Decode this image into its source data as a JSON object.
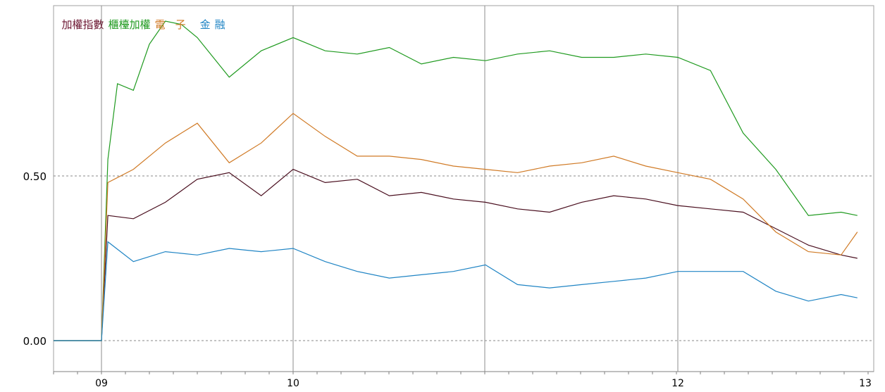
{
  "chart_data": {
    "type": "line",
    "title": "",
    "xlabel": "",
    "ylabel": "",
    "x_ticks": [
      "09",
      "10",
      "12",
      "13"
    ],
    "y_ticks": [
      "0.50",
      "0.00"
    ],
    "ylim": [
      -0.1,
      1.05
    ],
    "grid": {
      "horizontal_dashed": [
        0.0,
        0.5
      ],
      "vertical_solid": true
    },
    "legend_placement": "top-left",
    "series": [
      {
        "name": "加權指數",
        "color": "#4a0f1f",
        "x": [
          "08:45",
          "09:00",
          "09:02",
          "09:10",
          "09:20",
          "09:30",
          "09:40",
          "09:50",
          "10:00",
          "10:10",
          "10:20",
          "10:30",
          "10:40",
          "10:50",
          "11:00",
          "11:10",
          "11:20",
          "11:30",
          "11:40",
          "11:50",
          "12:00",
          "12:10",
          "12:20",
          "12:30",
          "12:40",
          "12:50",
          "12:55"
        ],
        "y": [
          0.0,
          0.0,
          0.38,
          0.37,
          0.42,
          0.49,
          0.51,
          0.44,
          0.52,
          0.48,
          0.49,
          0.44,
          0.45,
          0.43,
          0.42,
          0.4,
          0.39,
          0.42,
          0.44,
          0.43,
          0.41,
          0.4,
          0.39,
          0.34,
          0.29,
          0.26,
          0.25
        ]
      },
      {
        "name": "櫃檯加權",
        "color": "#1f9a1f",
        "x": [
          "08:45",
          "09:00",
          "09:02",
          "09:05",
          "09:10",
          "09:15",
          "09:20",
          "09:25",
          "09:30",
          "09:40",
          "09:50",
          "10:00",
          "10:10",
          "10:20",
          "10:30",
          "10:40",
          "10:50",
          "11:00",
          "11:10",
          "11:20",
          "11:30",
          "11:40",
          "11:50",
          "12:00",
          "12:10",
          "12:20",
          "12:30",
          "12:40",
          "12:50",
          "12:55"
        ],
        "y": [
          0.0,
          0.0,
          0.55,
          0.78,
          0.76,
          0.9,
          0.97,
          0.96,
          0.92,
          0.8,
          0.88,
          0.92,
          0.88,
          0.87,
          0.89,
          0.84,
          0.86,
          0.85,
          0.87,
          0.88,
          0.86,
          0.86,
          0.87,
          0.86,
          0.82,
          0.63,
          0.52,
          0.38,
          0.39,
          0.38
        ]
      },
      {
        "name": "電子",
        "color": "#d07a25",
        "x": [
          "08:45",
          "09:00",
          "09:02",
          "09:10",
          "09:20",
          "09:30",
          "09:40",
          "09:50",
          "10:00",
          "10:10",
          "10:20",
          "10:30",
          "10:40",
          "10:50",
          "11:00",
          "11:10",
          "11:20",
          "11:30",
          "11:40",
          "11:50",
          "12:00",
          "12:10",
          "12:20",
          "12:30",
          "12:40",
          "12:50",
          "12:55"
        ],
        "y": [
          0.0,
          0.0,
          0.48,
          0.52,
          0.6,
          0.66,
          0.54,
          0.6,
          0.69,
          0.62,
          0.56,
          0.56,
          0.55,
          0.53,
          0.52,
          0.51,
          0.53,
          0.54,
          0.56,
          0.53,
          0.51,
          0.49,
          0.43,
          0.33,
          0.27,
          0.26,
          0.33
        ]
      },
      {
        "name": "金融",
        "color": "#1f84c4",
        "x": [
          "08:45",
          "09:00",
          "09:02",
          "09:10",
          "09:20",
          "09:30",
          "09:40",
          "09:50",
          "10:00",
          "10:10",
          "10:20",
          "10:30",
          "10:40",
          "10:50",
          "11:00",
          "11:10",
          "11:20",
          "11:30",
          "11:40",
          "11:50",
          "12:00",
          "12:10",
          "12:20",
          "12:30",
          "12:40",
          "12:50",
          "12:55"
        ],
        "y": [
          0.0,
          0.0,
          0.3,
          0.24,
          0.27,
          0.26,
          0.28,
          0.27,
          0.28,
          0.24,
          0.21,
          0.19,
          0.2,
          0.21,
          0.23,
          0.17,
          0.16,
          0.17,
          0.18,
          0.19,
          0.21,
          0.21,
          0.21,
          0.15,
          0.12,
          0.14,
          0.13
        ]
      }
    ]
  }
}
